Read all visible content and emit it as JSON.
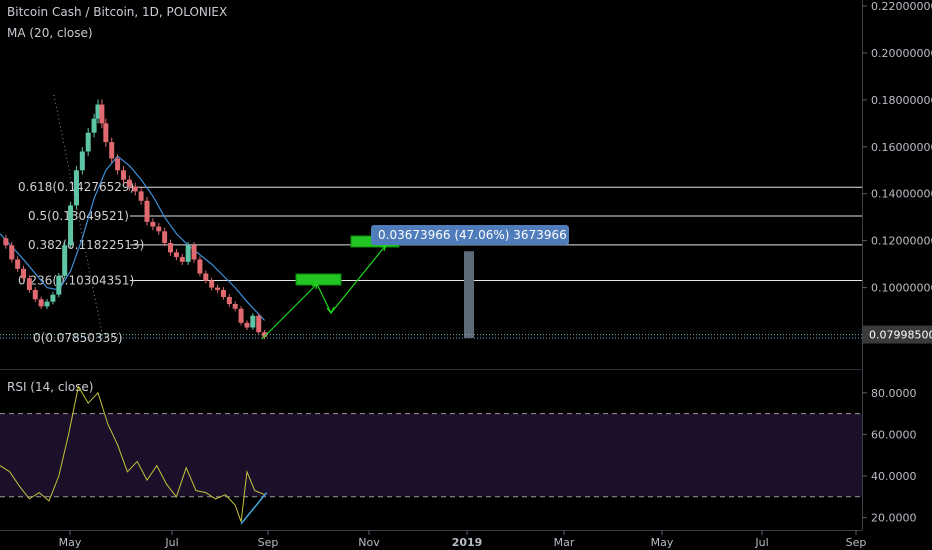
{
  "header": {
    "symbol_title": "Bitcoin Cash / Bitcoin, 1D, POLONIEX",
    "ma_label": "MA (20, close)",
    "rsi_label": "RSI (14, close)"
  },
  "colors": {
    "background": "#000000",
    "candle_up": "#5ec6a6",
    "candle_down": "#e06a70",
    "ma_line": "#3f8fd8",
    "fib_line": "#e6e6e6",
    "arrow_green": "#1fd81f",
    "box_green": "#22c422",
    "measure_box": "#4f7cba",
    "rsi_line": "#c6c23a",
    "rsi_band": "#1b0f2a",
    "rsi_trendline": "#40a8e0",
    "price_tag": "#3a3a3a",
    "grey_bar": "#5d6a78"
  },
  "chart_data": {
    "type": "candlestick",
    "title": "Bitcoin Cash / Bitcoin, 1D, POLONIEX",
    "price_axis": {
      "min": 0.07,
      "max": 0.22,
      "ticks": [
        "0.22000000",
        "0.20000000",
        "0.18000000",
        "0.16000000",
        "0.14000000",
        "0.12000000",
        "0.10000000"
      ],
      "tick_values": [
        0.22,
        0.2,
        0.18,
        0.16,
        0.14,
        0.12,
        0.1
      ]
    },
    "last_price": {
      "value": 0.079985,
      "label": "0.07998500"
    },
    "x_axis": {
      "labels": [
        "May",
        "Jul",
        "Sep",
        "Nov",
        "2019",
        "Mar",
        "May",
        "Jul",
        "Sep"
      ],
      "bold": [
        false,
        false,
        false,
        false,
        true,
        false,
        false,
        false,
        false
      ]
    },
    "fib_levels": [
      {
        "label": "0.618(0.14276529)",
        "value": 0.14276529
      },
      {
        "label": "0.5(0.13049521)",
        "value": 0.13049521
      },
      {
        "label": "0.382(0.11822513)",
        "value": 0.11822513
      },
      {
        "label": "0.236(0.10304351)",
        "value": 0.10304351
      },
      {
        "label": "0(0.07850335)",
        "value": 0.07850335
      }
    ],
    "price_series": [
      [
        0,
        0.121
      ],
      [
        0.3,
        0.118
      ],
      [
        0.6,
        0.112
      ],
      [
        0.9,
        0.108
      ],
      [
        1.2,
        0.104
      ],
      [
        1.5,
        0.099
      ],
      [
        1.8,
        0.095
      ],
      [
        2.1,
        0.092
      ],
      [
        2.4,
        0.094
      ],
      [
        2.7,
        0.097
      ],
      [
        3.0,
        0.105
      ],
      [
        3.3,
        0.118
      ],
      [
        3.6,
        0.135
      ],
      [
        3.9,
        0.15
      ],
      [
        4.2,
        0.158
      ],
      [
        4.5,
        0.166
      ],
      [
        4.8,
        0.172
      ],
      [
        5.0,
        0.178
      ],
      [
        5.2,
        0.17
      ],
      [
        5.4,
        0.162
      ],
      [
        5.7,
        0.155
      ],
      [
        6.0,
        0.15
      ],
      [
        6.3,
        0.146
      ],
      [
        6.6,
        0.143
      ],
      [
        6.9,
        0.141
      ],
      [
        7.2,
        0.137
      ],
      [
        7.5,
        0.128
      ],
      [
        7.8,
        0.126
      ],
      [
        8.1,
        0.124
      ],
      [
        8.4,
        0.119
      ],
      [
        8.7,
        0.115
      ],
      [
        9.0,
        0.113
      ],
      [
        9.3,
        0.111
      ],
      [
        9.6,
        0.118
      ],
      [
        9.9,
        0.112
      ],
      [
        10.2,
        0.106
      ],
      [
        10.5,
        0.103
      ],
      [
        10.8,
        0.1
      ],
      [
        11.1,
        0.099
      ],
      [
        11.4,
        0.096
      ],
      [
        11.7,
        0.093
      ],
      [
        12.0,
        0.091
      ],
      [
        12.3,
        0.085
      ],
      [
        12.6,
        0.083
      ],
      [
        12.9,
        0.088
      ],
      [
        13.2,
        0.081
      ],
      [
        13.5,
        0.079
      ]
    ],
    "ma_series": [
      [
        0,
        0.123
      ],
      [
        1.2,
        0.112
      ],
      [
        2.4,
        0.1
      ],
      [
        3.0,
        0.099
      ],
      [
        3.6,
        0.107
      ],
      [
        4.2,
        0.121
      ],
      [
        4.8,
        0.138
      ],
      [
        5.4,
        0.15
      ],
      [
        6.0,
        0.156
      ],
      [
        6.6,
        0.152
      ],
      [
        7.2,
        0.146
      ],
      [
        7.8,
        0.139
      ],
      [
        8.4,
        0.13
      ],
      [
        9.0,
        0.123
      ],
      [
        9.6,
        0.118
      ],
      [
        10.2,
        0.114
      ],
      [
        10.8,
        0.11
      ],
      [
        11.4,
        0.105
      ],
      [
        12.0,
        0.1
      ],
      [
        12.6,
        0.094
      ],
      [
        13.5,
        0.086
      ]
    ],
    "measure": {
      "label": "0.03673966 (47.06%) 3673966",
      "from": 0.0785,
      "to": 0.1155
    },
    "rsi": {
      "min": 15,
      "max": 90,
      "ticks": [
        "80.0000",
        "60.0000",
        "40.0000",
        "20.0000"
      ],
      "tick_values": [
        80,
        60,
        40,
        20
      ],
      "upper_band": 70,
      "lower_band": 30,
      "series": [
        [
          0,
          45
        ],
        [
          0.5,
          42
        ],
        [
          1.0,
          35
        ],
        [
          1.5,
          29
        ],
        [
          2.0,
          32
        ],
        [
          2.5,
          28
        ],
        [
          3.0,
          40
        ],
        [
          3.5,
          60
        ],
        [
          4.0,
          83
        ],
        [
          4.5,
          75
        ],
        [
          5.0,
          80
        ],
        [
          5.5,
          65
        ],
        [
          6.0,
          55
        ],
        [
          6.5,
          42
        ],
        [
          7.0,
          47
        ],
        [
          7.5,
          38
        ],
        [
          8.0,
          45
        ],
        [
          8.5,
          36
        ],
        [
          9.0,
          30
        ],
        [
          9.5,
          44
        ],
        [
          10.0,
          33
        ],
        [
          10.5,
          32
        ],
        [
          11.0,
          29
        ],
        [
          11.5,
          31
        ],
        [
          12.0,
          26
        ],
        [
          12.3,
          18
        ],
        [
          12.6,
          42
        ],
        [
          13.0,
          33
        ],
        [
          13.5,
          31
        ]
      ]
    }
  }
}
